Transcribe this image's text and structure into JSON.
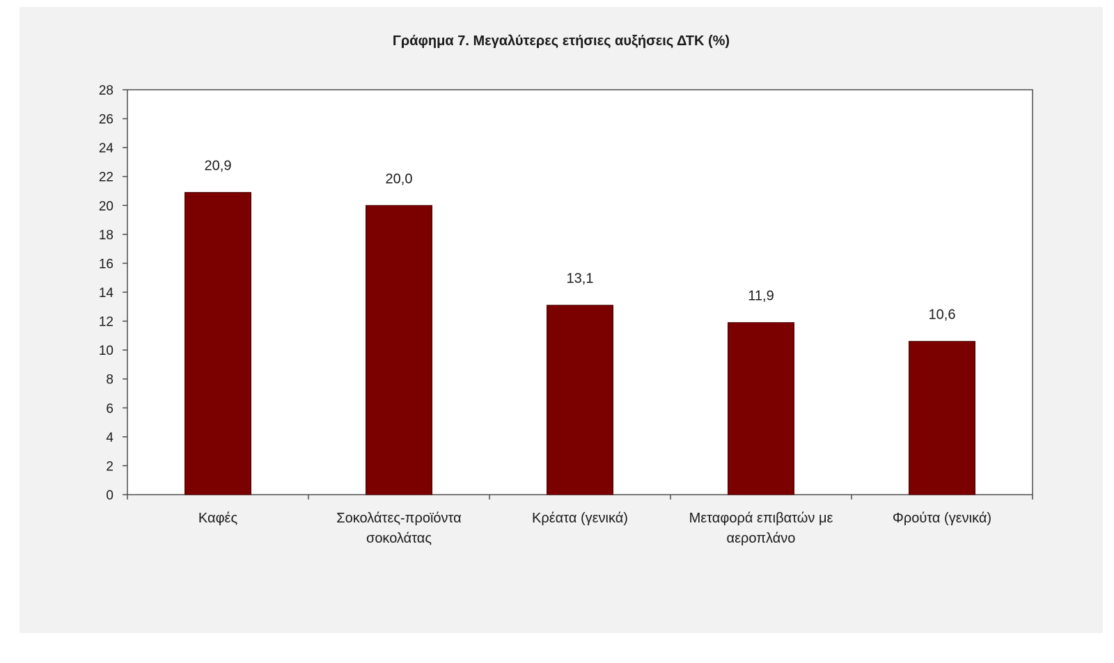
{
  "chart_data": {
    "type": "bar",
    "title": "Γράφημα 7. Μεγαλύτερες ετήσιες αυξήσεις ΔΤΚ (%)",
    "xlabel": "",
    "ylabel": "",
    "categories": [
      [
        "Καφές"
      ],
      [
        "Σοκολάτες-προϊόντα",
        "σοκολάτας"
      ],
      [
        "Κρέατα (γενικά)"
      ],
      [
        "Μεταφορά επιβατών με",
        "αεροπλάνο"
      ],
      [
        "Φρούτα (γενικά)"
      ]
    ],
    "values": [
      20.9,
      20.0,
      13.1,
      11.9,
      10.6
    ],
    "value_labels": [
      "20,9",
      "20,0",
      "13,1",
      "11,9",
      "10,6"
    ],
    "ylim": [
      0,
      28
    ],
    "yticks": [
      0,
      2,
      4,
      6,
      8,
      10,
      12,
      14,
      16,
      18,
      20,
      22,
      24,
      26,
      28
    ],
    "grid": false,
    "legend": "none",
    "bar_color": "#7b0000",
    "plot_background": "#ffffff",
    "panel_background": "#f2f2f2"
  }
}
